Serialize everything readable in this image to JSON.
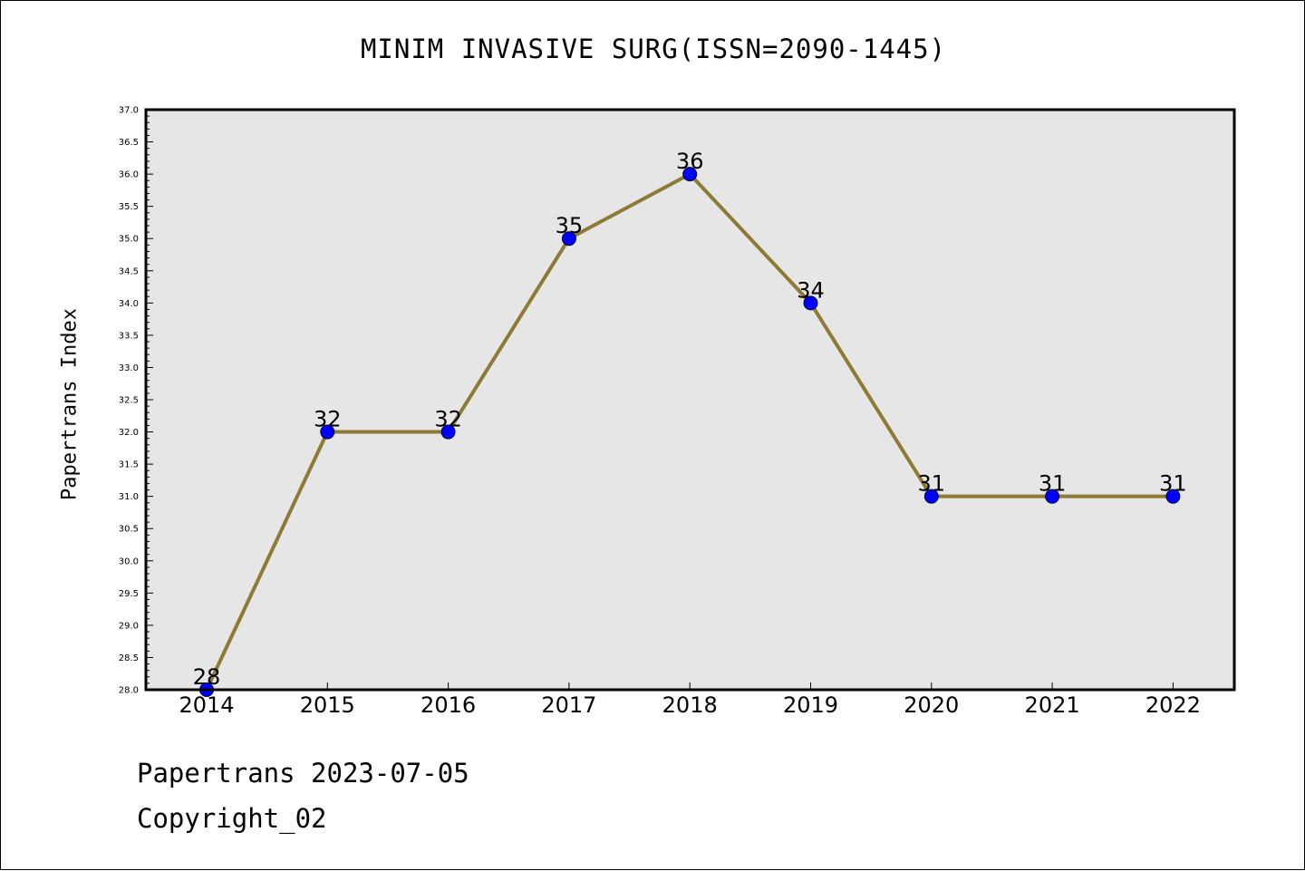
{
  "chart_data": {
    "type": "line",
    "title": "MINIM INVASIVE SURG(ISSN=2090-1445)",
    "xlabel": "",
    "ylabel": "Papertrans Index",
    "categories": [
      "2014",
      "2015",
      "2016",
      "2017",
      "2018",
      "2019",
      "2020",
      "2021",
      "2022"
    ],
    "series": [
      {
        "values": [
          28,
          32,
          32,
          35,
          36,
          34,
          31,
          31,
          31
        ]
      }
    ],
    "data_labels": [
      "28",
      "32",
      "32",
      "35",
      "36",
      "34",
      "31",
      "31",
      "31"
    ],
    "ylim": [
      28.0,
      37.0
    ],
    "yticks": [
      "28.0",
      "28.5",
      "29.0",
      "29.5",
      "30.0",
      "30.5",
      "31.0",
      "31.5",
      "32.0",
      "32.5",
      "33.0",
      "33.5",
      "34.0",
      "34.5",
      "35.0",
      "35.5",
      "36.0",
      "36.5",
      "37.0"
    ],
    "grid": false,
    "colors": {
      "line": "#8c7a35",
      "marker": "#0000ff",
      "plot_background": "#e6e6e6"
    }
  },
  "footer": {
    "line1": "Papertrans 2023-07-05",
    "line2": "Copyright_02"
  }
}
